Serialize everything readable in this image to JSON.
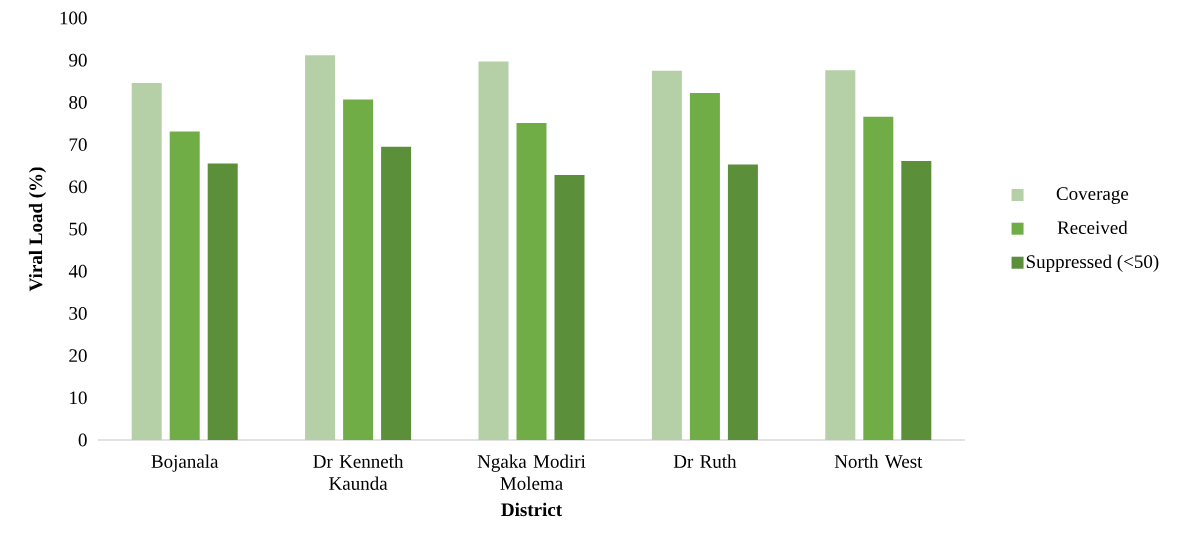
{
  "chart_data": {
    "type": "bar",
    "xlabel": "District",
    "ylabel": "Viral Load (%)",
    "categories": [
      "Bojanala",
      "Dr Kenneth Kaunda",
      "Ngaka Modiri Molema",
      "Dr Ruth",
      "North West"
    ],
    "series": [
      {
        "name": "Coverage",
        "color": "#b5cfa7",
        "values": [
          84.6,
          91.2,
          89.7,
          87.5,
          87.6
        ]
      },
      {
        "name": "Received",
        "color": "#70ad47",
        "values": [
          73.1,
          80.7,
          75.1,
          82.2,
          76.6
        ]
      },
      {
        "name": "Suppressed (<50)",
        "color": "#5b8f3a",
        "values": [
          65.5,
          69.5,
          62.8,
          65.3,
          66.1
        ]
      }
    ],
    "ylim": [
      0,
      100
    ],
    "yticks": [
      0,
      10,
      20,
      30,
      40,
      50,
      60,
      70,
      80,
      90,
      100
    ],
    "legend": "right"
  }
}
